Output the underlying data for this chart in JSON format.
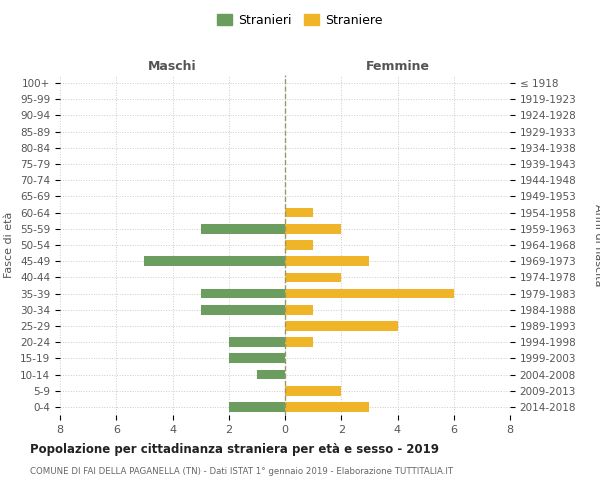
{
  "age_groups_bottom_to_top": [
    "0-4",
    "5-9",
    "10-14",
    "15-19",
    "20-24",
    "25-29",
    "30-34",
    "35-39",
    "40-44",
    "45-49",
    "50-54",
    "55-59",
    "60-64",
    "65-69",
    "70-74",
    "75-79",
    "80-84",
    "85-89",
    "90-94",
    "95-99",
    "100+"
  ],
  "birth_years_bottom_to_top": [
    "2014-2018",
    "2009-2013",
    "2004-2008",
    "1999-2003",
    "1994-1998",
    "1989-1993",
    "1984-1988",
    "1979-1983",
    "1974-1978",
    "1969-1973",
    "1964-1968",
    "1959-1963",
    "1954-1958",
    "1949-1953",
    "1944-1948",
    "1939-1943",
    "1934-1938",
    "1929-1933",
    "1924-1928",
    "1919-1923",
    "≤ 1918"
  ],
  "maschi_bottom_to_top": [
    2,
    0,
    1,
    2,
    2,
    0,
    3,
    3,
    0,
    5,
    0,
    3,
    0,
    0,
    0,
    0,
    0,
    0,
    0,
    0,
    0
  ],
  "femmine_bottom_to_top": [
    3,
    2,
    0,
    0,
    1,
    4,
    1,
    6,
    2,
    3,
    1,
    2,
    1,
    0,
    0,
    0,
    0,
    0,
    0,
    0,
    0
  ],
  "maschi_color": "#6b9e5e",
  "femmine_color": "#f0b429",
  "title": "Popolazione per cittadinanza straniera per età e sesso - 2019",
  "subtitle": "COMUNE DI FAI DELLA PAGANELLA (TN) - Dati ISTAT 1° gennaio 2019 - Elaborazione TUTTITALIA.IT",
  "label_maschi": "Maschi",
  "label_femmine": "Femmine",
  "ylabel_left": "Fasce di età",
  "ylabel_right": "Anni di nascita",
  "legend_maschi": "Stranieri",
  "legend_femmine": "Straniere",
  "xlim": 8,
  "background_color": "#ffffff",
  "grid_color": "#cccccc",
  "spine_color": "#cccccc"
}
